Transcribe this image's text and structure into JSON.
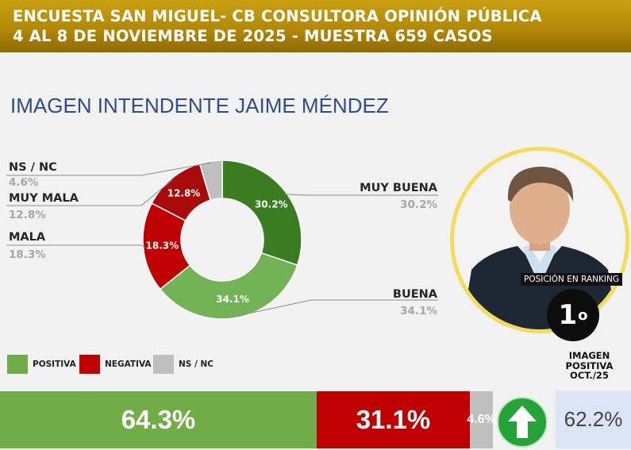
{
  "header": {
    "line1": "ENCUESTA SAN MIGUEL- CB CONSULTORA OPINIÓN PÚBLICA",
    "line2": "4 AL 8 DE NOVIEMBRE DE 2025 - MUESTRA 659 CASOS"
  },
  "page_title": "IMAGEN INTENDENTE  JAIME MÉNDEZ",
  "colors": {
    "muy_buena": "#3a7d20",
    "buena": "#72b356",
    "mala": "#c00000",
    "muy_mala": "#a80a0a",
    "ns_nc": "#bfbfbf",
    "positiva": "#70ad47",
    "negativa": "#c00000",
    "arrow": "#26a336"
  },
  "chart_data": [
    {
      "type": "pie",
      "donut": true,
      "slices": [
        {
          "label": "MUY BUENA",
          "value": 30.2,
          "value_label": "30.2%"
        },
        {
          "label": "BUENA",
          "value": 34.1,
          "value_label": "34.1%"
        },
        {
          "label": "MALA",
          "value": 18.3,
          "value_label": "18.3%"
        },
        {
          "label": "MUY MALA",
          "value": 12.8,
          "value_label": "12.8%"
        },
        {
          "label": "NS / NC",
          "value": 4.6,
          "value_label": "4.6%"
        }
      ]
    },
    {
      "type": "bar",
      "stacked": true,
      "orientation": "horizontal",
      "legend": [
        {
          "label": "POSITIVA"
        },
        {
          "label": "NEGATIVA"
        },
        {
          "label": "NS / NC"
        }
      ],
      "segments": [
        {
          "value": 64.3,
          "label": "64.3%"
        },
        {
          "value": 31.1,
          "label": "31.1%"
        },
        {
          "value": 4.6,
          "label": "4.6%"
        }
      ]
    }
  ],
  "ranking": {
    "label": "POSICIÓN EN RANKING",
    "value": "1",
    "suffix": "o"
  },
  "previous": {
    "label_line1": "IMAGEN",
    "label_line2": "POSITIVA",
    "label_line3": "OCT./25",
    "value": "62.2%"
  },
  "icons": {
    "arrow": "up-arrow-icon",
    "photo": "portrait-photo"
  }
}
